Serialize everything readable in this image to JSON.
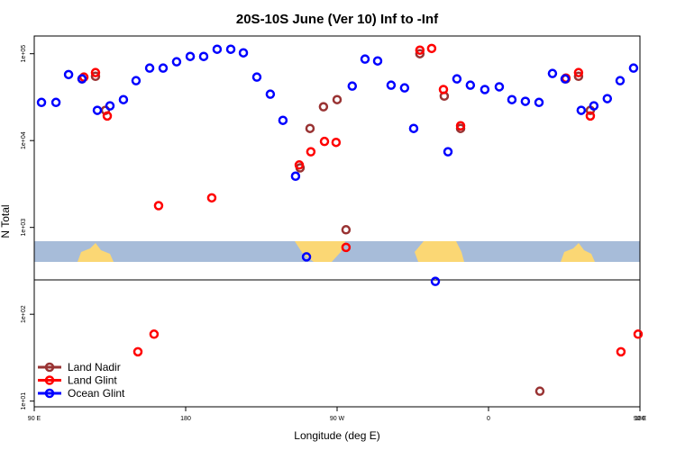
{
  "chart_data": {
    "type": "scatter",
    "title": "20S-10S June (Ver 10)   Inf to -Inf",
    "x_label": "Longitude (deg E)",
    "y_label": "N Total",
    "log_y": true,
    "legend_position": "lower left",
    "xlim": [
      90,
      450
    ],
    "xticks": [
      {
        "value": 90,
        "label": "90 E"
      },
      {
        "value": 180,
        "label": "180"
      },
      {
        "value": 270,
        "label": "90 W"
      },
      {
        "value": 360,
        "label": "0"
      },
      {
        "value": 450,
        "label": "90 E"
      },
      {
        "value": 540,
        "label": "180"
      }
    ],
    "ylim": [
      8.6,
      160000
    ],
    "yticks": [
      {
        "value": 10,
        "label": "1e+01"
      },
      {
        "value": 100,
        "label": "1e+02"
      },
      {
        "value": 1000,
        "label": "1e+03"
      },
      {
        "value": 10000,
        "label": "1e+04"
      },
      {
        "value": 100000,
        "label": "1e+05"
      }
    ],
    "series": [
      {
        "name": "Land Nadir",
        "color": "#993333",
        "x": [
          118.4,
          126.4,
          132.3,
          248,
          253.9,
          261.9,
          270,
          275.3,
          319.2,
          333.7,
          343.4,
          390.5,
          406,
          413.5,
          420.5
        ],
        "values": [
          51300,
          55000,
          22300,
          4850,
          13800,
          24500,
          29600,
          940,
          100000,
          32500,
          13800,
          13,
          51300,
          55000,
          22300
        ]
      },
      {
        "name": "Land Glint",
        "color": "#ff0000",
        "x": [
          119.5,
          126.4,
          133.4,
          151.6,
          161.2,
          163.9,
          195.5,
          247.5,
          254.4,
          262.5,
          269.4,
          275.3,
          319.2,
          326.2,
          333.2,
          343.4,
          406,
          413.5,
          420.5,
          438.7,
          448.9
        ],
        "values": [
          53800,
          60600,
          19200,
          37,
          59,
          1780,
          2190,
          5240,
          7430,
          9770,
          9530,
          589,
          110000,
          115000,
          38700,
          14800,
          52500,
          60600,
          19200,
          37,
          59
        ]
      },
      {
        "name": "Ocean Glint",
        "color": "#0000ff",
        "x": [
          94.3,
          102.9,
          110.4,
          118.4,
          127.5,
          135,
          143,
          150.5,
          158.6,
          166.6,
          174.6,
          182.7,
          190.7,
          198.7,
          206.8,
          214.3,
          222.3,
          230.3,
          237.8,
          245.3,
          251.8,
          279,
          286.6,
          294.1,
          302.1,
          310.1,
          315.5,
          328.4,
          335.9,
          341.2,
          349.2,
          357.8,
          366.4,
          373.9,
          381.9,
          390,
          398,
          405.5,
          415.1,
          422.6,
          430.6,
          438.2,
          446.2
        ],
        "values": [
          27500,
          27500,
          57600,
          51300,
          22300,
          25100,
          29600,
          48900,
          68300,
          68300,
          80700,
          93100,
          93100,
          112600,
          112600,
          102400,
          53800,
          34200,
          17100,
          3890,
          458,
          42400,
          86700,
          82600,
          43400,
          40400,
          13800,
          239,
          7430,
          51300,
          43400,
          38700,
          41600,
          29600,
          28300,
          27500,
          59200,
          51300,
          22300,
          25100,
          30400,
          48900,
          68300
        ]
      }
    ]
  }
}
